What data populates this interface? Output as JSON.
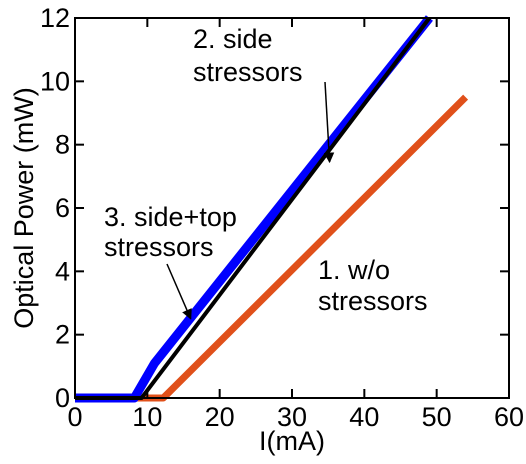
{
  "chart_data": {
    "type": "line",
    "xlabel": "I(mA)",
    "ylabel": "Optical Power (mW)",
    "xlim": [
      0,
      60
    ],
    "ylim": [
      0,
      12
    ],
    "x_ticks": [
      "0",
      "10",
      "20",
      "30",
      "40",
      "50",
      "60"
    ],
    "y_ticks": [
      "0",
      "2",
      "4",
      "6",
      "8",
      "10",
      "12"
    ],
    "grid": false,
    "series": [
      {
        "name": "1. w/o stressors",
        "color": "#e0501a",
        "x": [
          0,
          12.2,
          54
        ],
        "y": [
          0,
          0,
          9.5
        ]
      },
      {
        "name": "2. side stressors",
        "color": "#0000ff",
        "x": [
          0,
          8.2,
          11,
          49
        ],
        "y": [
          0,
          0,
          1.1,
          12
        ]
      },
      {
        "name": "3. side+top stressors",
        "color": "#000000",
        "x": [
          0,
          9.2,
          49
        ],
        "y": [
          0,
          0,
          12
        ]
      }
    ],
    "annotations": [
      {
        "lines": [
          "2. side",
          "stressors"
        ],
        "arrow_to": [
          35.2,
          7.45
        ]
      },
      {
        "lines": [
          "3. side+top",
          "stressors"
        ],
        "arrow_to": [
          16,
          2.5
        ]
      },
      {
        "lines": [
          "1. w/o",
          "stressors"
        ]
      }
    ]
  }
}
